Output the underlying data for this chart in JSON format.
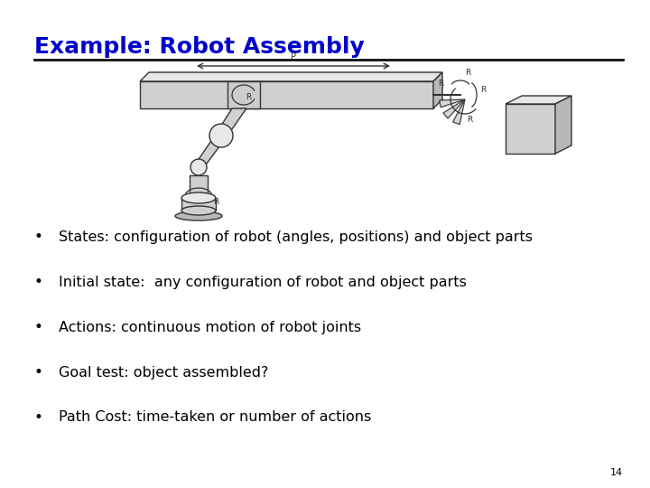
{
  "title": "Example: Robot Assembly",
  "title_color": "#0000CC",
  "title_fontsize": 18,
  "underline_color": "#111111",
  "bullet_points": [
    "States: configuration of robot (angles, positions) and object parts",
    "Initial state:  any configuration of robot and object parts",
    "Actions: continuous motion of robot joints",
    "Goal test: object assembled?",
    "Path Cost: time-taken or number of actions"
  ],
  "bullet_fontsize": 11.5,
  "bullet_color": "#000000",
  "background_color": "#ffffff",
  "page_number": "14",
  "page_number_fontsize": 8,
  "diagram_edge_color": "#333333",
  "diagram_face_light": "#e8e8e8",
  "diagram_face_mid": "#d0d0d0",
  "diagram_face_dark": "#b8b8b8"
}
